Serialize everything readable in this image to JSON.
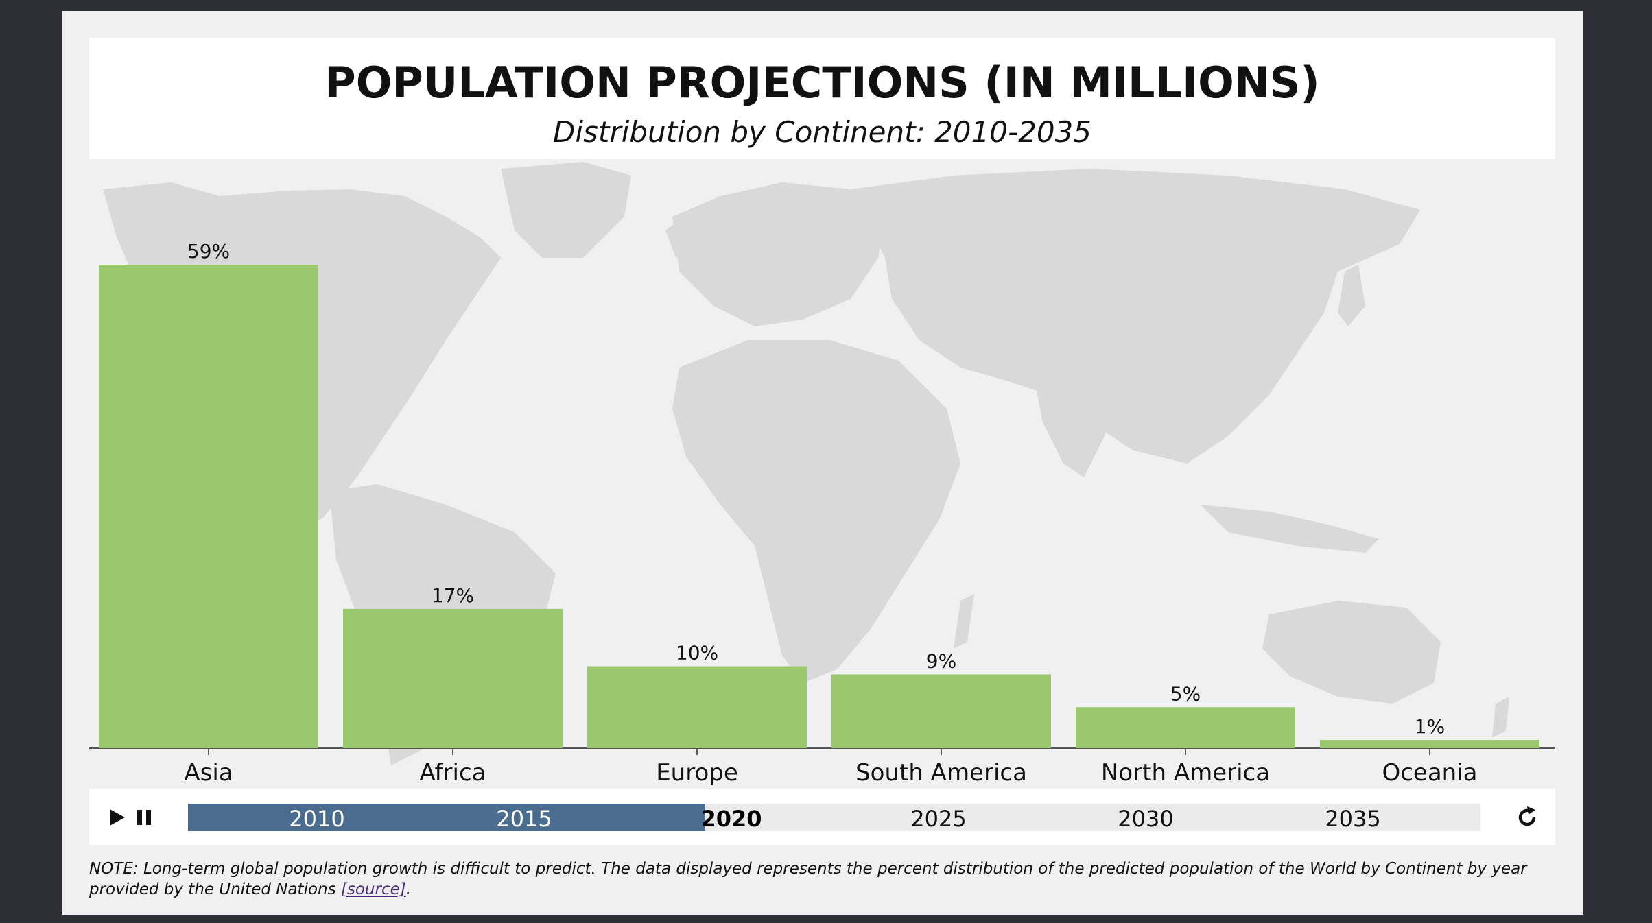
{
  "title": "POPULATION PROJECTIONS (IN MILLIONS)",
  "subtitle": "Distribution by Continent: 2010-2035",
  "colors": {
    "background": "#2e2f36",
    "panel": "#f0f0f0",
    "bar": "#9bc76f",
    "map": "#d9d9d9",
    "timeline_fill": "#4a6c8f",
    "timeline_track": "#ebebeb",
    "link": "#4b2c7a"
  },
  "chart_data": {
    "type": "bar",
    "categories": [
      "Asia",
      "Africa",
      "Europe",
      "South America",
      "North America",
      "Oceania"
    ],
    "values": [
      59,
      17,
      10,
      9,
      5,
      1
    ],
    "value_labels": [
      "59%",
      "17%",
      "10%",
      "9%",
      "5%",
      "1%"
    ],
    "title": "POPULATION PROJECTIONS (IN MILLIONS)",
    "subtitle": "Distribution by Continent: 2010-2035",
    "xlabel": "",
    "ylabel": "",
    "ylim": [
      0,
      59
    ],
    "grid": false,
    "background_map": "world"
  },
  "controls": {
    "play_icon": "play-icon",
    "pause_icon": "pause-icon",
    "replay_icon": "replay-icon",
    "years": [
      "2010",
      "2015",
      "2020",
      "2025",
      "2030",
      "2035"
    ],
    "current_year": "2020",
    "progress": 0.4
  },
  "note": {
    "text": "NOTE: Long-term global population growth is difficult to predict. The data displayed represents the percent distribution of the predicted population of the World by Continent by year provided by the United Nations ",
    "link_text": "[source]",
    "suffix": "."
  }
}
